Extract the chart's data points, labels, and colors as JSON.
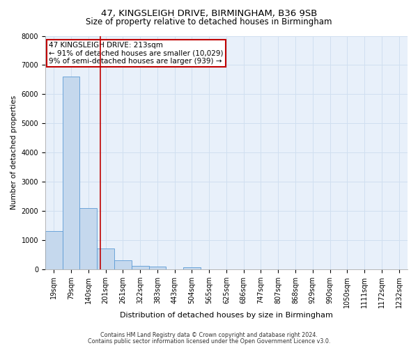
{
  "title": "47, KINGSLEIGH DRIVE, BIRMINGHAM, B36 9SB",
  "subtitle": "Size of property relative to detached houses in Birmingham",
  "xlabel": "Distribution of detached houses by size in Birmingham",
  "ylabel": "Number of detached properties",
  "footnote1": "Contains HM Land Registry data © Crown copyright and database right 2024.",
  "footnote2": "Contains public sector information licensed under the Open Government Licence v3.0.",
  "bar_labels": [
    "19sqm",
    "79sqm",
    "140sqm",
    "201sqm",
    "261sqm",
    "322sqm",
    "383sqm",
    "443sqm",
    "504sqm",
    "565sqm",
    "625sqm",
    "686sqm",
    "747sqm",
    "807sqm",
    "868sqm",
    "929sqm",
    "990sqm",
    "1050sqm",
    "1111sqm",
    "1172sqm",
    "1232sqm"
  ],
  "bar_values": [
    1300,
    6600,
    2100,
    700,
    300,
    120,
    80,
    0,
    60,
    0,
    0,
    0,
    0,
    0,
    0,
    0,
    0,
    0,
    0,
    0,
    0
  ],
  "bar_color": "#c5d8ed",
  "bar_edge_color": "#5b9bd5",
  "grid_color": "#d0dff0",
  "bg_color": "#e8f0fa",
  "vline_color": "#c00000",
  "vline_x": 2.68,
  "annotation_text_line1": "47 KINGSLEIGH DRIVE: 213sqm",
  "annotation_text_line2": "← 91% of detached houses are smaller (10,029)",
  "annotation_text_line3": "9% of semi-detached houses are larger (939) →",
  "annotation_box_color": "#c00000",
  "ylim": [
    0,
    8000
  ],
  "yticks": [
    0,
    1000,
    2000,
    3000,
    4000,
    5000,
    6000,
    7000,
    8000
  ],
  "title_fontsize": 9.5,
  "subtitle_fontsize": 8.5,
  "ylabel_fontsize": 7.5,
  "xlabel_fontsize": 8,
  "tick_fontsize": 7,
  "annotation_fontsize": 7.5,
  "footnote_fontsize": 5.8
}
